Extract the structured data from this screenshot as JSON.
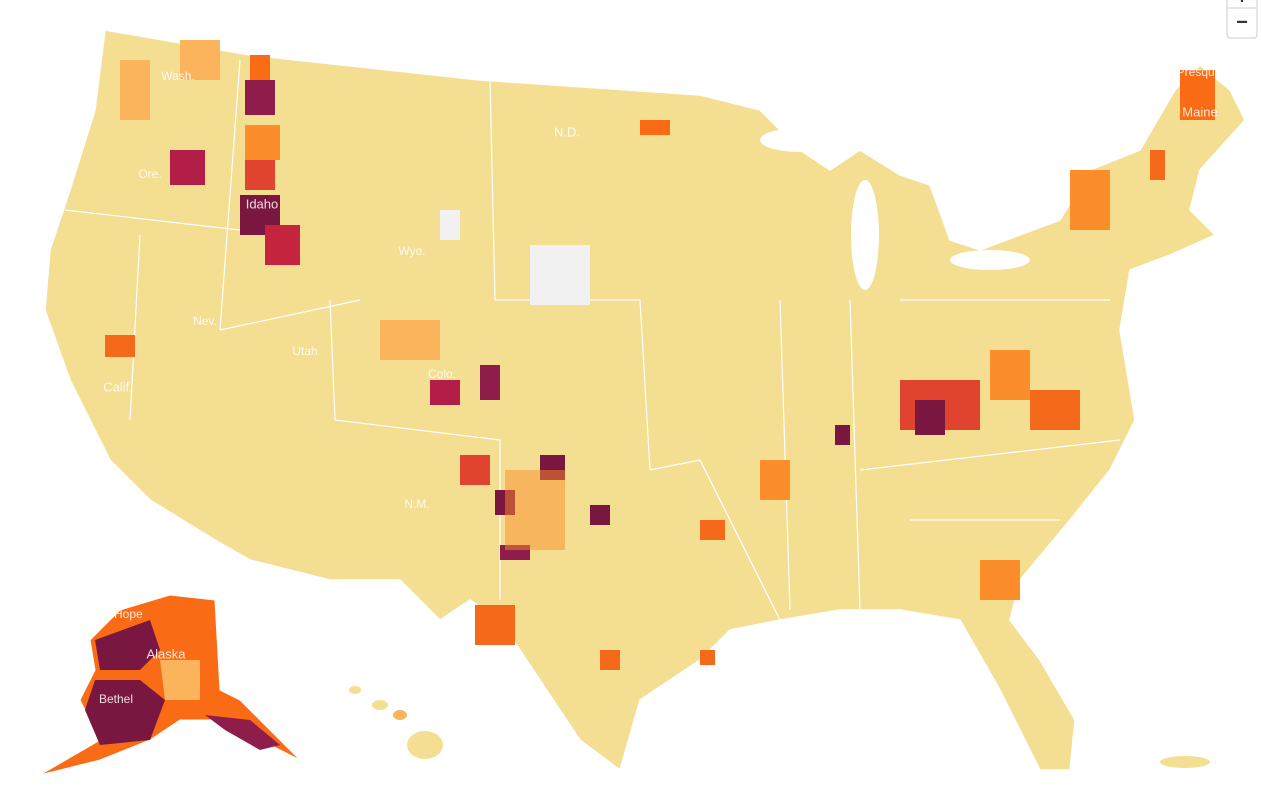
{
  "map": {
    "zoom": {
      "zoom_in": "+",
      "zoom_out": "−"
    },
    "labels": [
      "Wash.",
      "Ore.",
      "Idaho",
      "Calif.",
      "Nev.",
      "Utah",
      "Wyo.",
      "Colo.",
      "N.M.",
      "N.D.",
      "Maine",
      "Presque Isle",
      "Alaska",
      "Bethel",
      "Point Hope"
    ]
  }
}
